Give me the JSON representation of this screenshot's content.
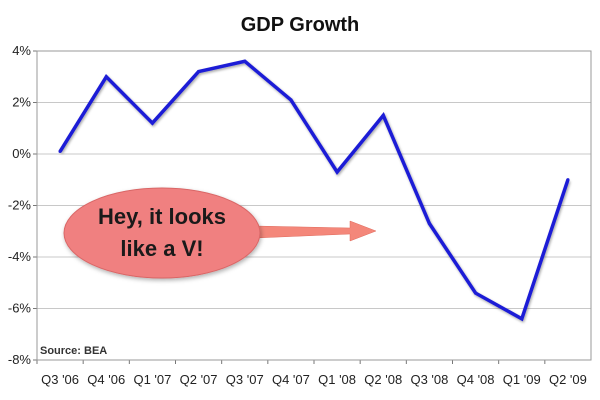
{
  "chart_data": {
    "type": "line",
    "title": "GDP Growth",
    "categories": [
      "Q3 '06",
      "Q4 '06",
      "Q1 '07",
      "Q2 '07",
      "Q3 '07",
      "Q4 '07",
      "Q1 '08",
      "Q2 '08",
      "Q3 '08",
      "Q4 '08",
      "Q1 '09",
      "Q2 '09"
    ],
    "series": [
      {
        "name": "",
        "values": [
          0.1,
          3.0,
          1.2,
          3.2,
          3.6,
          2.1,
          -0.7,
          1.5,
          -2.7,
          -5.4,
          -6.4,
          -1.0
        ]
      }
    ],
    "yticks": [
      4,
      2,
      0,
      -2,
      -4,
      -6,
      -8
    ],
    "ytick_labels": [
      "4%",
      "2%",
      "0%",
      "-2%",
      "-4%",
      "-6%",
      "-8%"
    ],
    "ylim": [
      -8,
      4
    ],
    "xlabel": "",
    "ylabel": "",
    "grid": true,
    "line_color": "#1f1fd6",
    "grid_color": "#c8c8c8",
    "source": "Source: BEA",
    "annotation": {
      "line1": "Hey, it looks",
      "line2": "like a V!",
      "fill_color": "#f08080",
      "arrow_color": "#f4877a"
    }
  }
}
